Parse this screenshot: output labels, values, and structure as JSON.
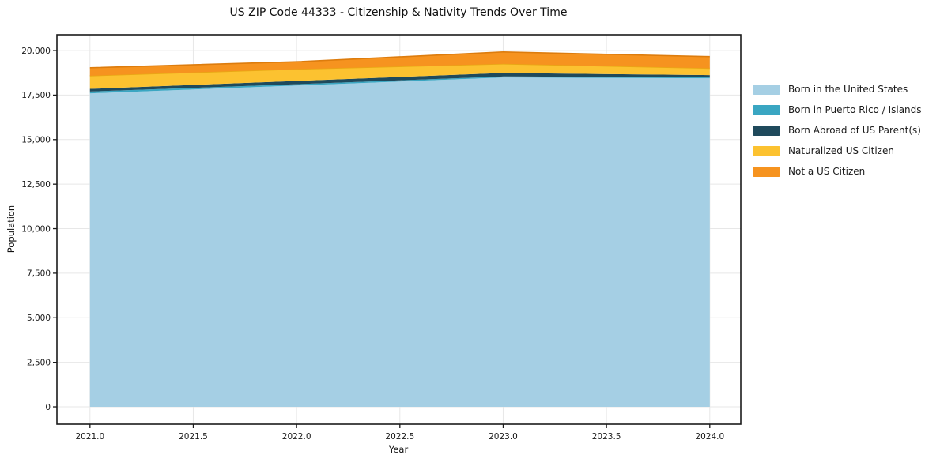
{
  "chart_data": {
    "type": "area",
    "stacked": true,
    "title": "US ZIP Code 44333 - Citizenship & Nativity Trends Over Time",
    "xlabel": "Year",
    "ylabel": "Population",
    "x": [
      2021,
      2022,
      2023,
      2024
    ],
    "series": [
      {
        "name": "Born in the United States",
        "color": "#a5cfe4",
        "edge": "#8dc0da",
        "edge_line": false,
        "values": [
          17600,
          18040,
          18490,
          18445
        ]
      },
      {
        "name": "Born in Puerto Rico / Islands",
        "color": "#3aa6c2",
        "edge": "#2e8fa8",
        "edge_line": false,
        "values": [
          100,
          75,
          60,
          45
        ]
      },
      {
        "name": "Born Abroad of US Parent(s)",
        "color": "#1f4a5c",
        "edge": "#163847",
        "edge_line": false,
        "values": [
          150,
          180,
          195,
          135
        ]
      },
      {
        "name": "Naturalized US Citizen",
        "color": "#fcc230",
        "edge": "#e8a814",
        "edge_line": true,
        "values": [
          740,
          665,
          515,
          385
        ]
      },
      {
        "name": "Not a US Citizen",
        "color": "#f6931f",
        "edge": "#dd7c0d",
        "edge_line": true,
        "values": [
          445,
          415,
          665,
          650
        ]
      }
    ],
    "x_ticks": [
      2021.0,
      2021.5,
      2022.0,
      2022.5,
      2023.0,
      2023.5,
      2024.0
    ],
    "x_tick_labels": [
      "2021.0",
      "2021.5",
      "2022.0",
      "2022.5",
      "2023.0",
      "2023.5",
      "2024.0"
    ],
    "y_ticks": [
      0,
      2500,
      5000,
      7500,
      10000,
      12500,
      15000,
      17500,
      20000
    ],
    "y_tick_labels": [
      "0",
      "2,500",
      "5,000",
      "7,500",
      "10,000",
      "12,500",
      "15,000",
      "17,500",
      "20,000"
    ],
    "xlim": [
      2020.84,
      2024.15
    ],
    "ylim": [
      -975,
      20890
    ],
    "grid": true,
    "legend_position": "center right",
    "colors": {
      "grid": "#e7e7e7",
      "axis": "#1a1a1a",
      "background": "#ffffff"
    }
  }
}
